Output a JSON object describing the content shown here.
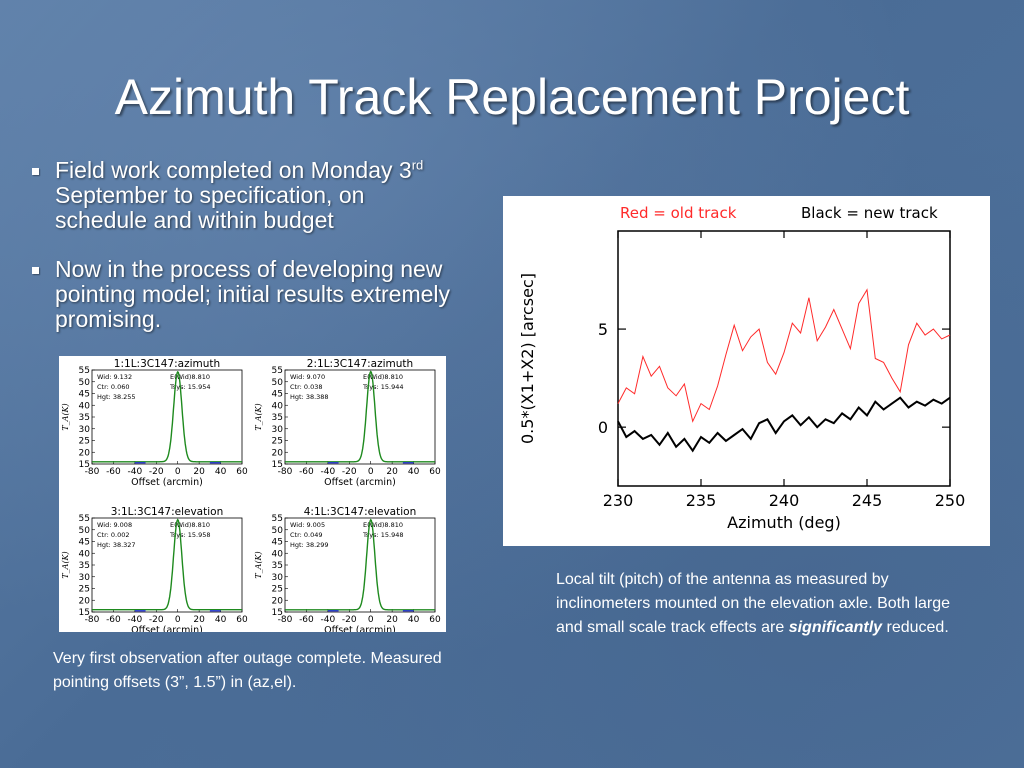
{
  "slide": {
    "title": "Azimuth Track Replacement Project",
    "bullets": [
      {
        "text_before": "Field work completed on Monday 3",
        "sup": "rd",
        "text_after": " September to specification, on schedule and within budget"
      },
      {
        "text": "Now in the process of developing new pointing model; initial results extremely promising."
      }
    ],
    "caption_left": "Very first observation after outage complete. Measured pointing offsets (3”, 1.5”) in (az,el).",
    "caption_right_before": "Local tilt (pitch) of the antenna as measured by inclinometers mounted on the elevation axle. Both large and small scale track effects are ",
    "caption_right_emph": "significantly",
    "caption_right_after": " reduced.",
    "colors": {
      "old_track": "#ff2a2a",
      "new_track": "#000000",
      "gaussian": "#1e8a1e",
      "baseline": "#2a2aff"
    }
  },
  "chart_data": [
    {
      "type": "line",
      "title": "1:1L:3C147:azimuth",
      "xlabel": "Offset (arcmin)",
      "ylabel": "T_A(K)",
      "xlim": [
        -80,
        60
      ],
      "ylim": [
        15,
        55
      ],
      "xticks": [
        -80,
        -60,
        -40,
        -20,
        0,
        20,
        40,
        60
      ],
      "yticks": [
        15,
        20,
        25,
        30,
        35,
        40,
        45,
        50,
        55
      ],
      "stats": [
        "Wid: 9.132",
        "Ctr: 0.060",
        "Hgt: 38.255",
        "E(Wid)8.810",
        "Tsys: 15.954"
      ],
      "fit": {
        "width": 9.132,
        "center": 0.06,
        "height": 38.255,
        "tsys": 15.954
      }
    },
    {
      "type": "line",
      "title": "2:1L:3C147:azimuth",
      "xlabel": "Offset (arcmin)",
      "ylabel": "T_A(K)",
      "xlim": [
        -80,
        60
      ],
      "ylim": [
        15,
        55
      ],
      "xticks": [
        -80,
        -60,
        -40,
        -20,
        0,
        20,
        40,
        60
      ],
      "yticks": [
        15,
        20,
        25,
        30,
        35,
        40,
        45,
        50,
        55
      ],
      "stats": [
        "Wid: 9.070",
        "Ctr: 0.038",
        "Hgt: 38.388",
        "E(Wid)8.810",
        "Tsys: 15.944"
      ],
      "fit": {
        "width": 9.07,
        "center": 0.038,
        "height": 38.388,
        "tsys": 15.944
      }
    },
    {
      "type": "line",
      "title": "3:1L:3C147:elevation",
      "xlabel": "Offset (arcmin)",
      "ylabel": "T_A(K)",
      "xlim": [
        -80,
        60
      ],
      "ylim": [
        15,
        55
      ],
      "xticks": [
        -80,
        -60,
        -40,
        -20,
        0,
        20,
        40,
        60
      ],
      "yticks": [
        15,
        20,
        25,
        30,
        35,
        40,
        45,
        50,
        55
      ],
      "stats": [
        "Wid: 9.008",
        "Ctr: 0.002",
        "Hgt: 38.327",
        "E(Wid)8.810",
        "Tsys: 15.958"
      ],
      "fit": {
        "width": 9.008,
        "center": 0.002,
        "height": 38.327,
        "tsys": 15.958
      }
    },
    {
      "type": "line",
      "title": "4:1L:3C147:elevation",
      "xlabel": "Offset (arcmin)",
      "ylabel": "T_A(K)",
      "xlim": [
        -80,
        60
      ],
      "ylim": [
        15,
        55
      ],
      "xticks": [
        -80,
        -60,
        -40,
        -20,
        0,
        20,
        40,
        60
      ],
      "yticks": [
        15,
        20,
        25,
        30,
        35,
        40,
        45,
        50,
        55
      ],
      "stats": [
        "Wid: 9.005",
        "Ctr: 0.049",
        "Hgt: 38.299",
        "E(Wid)8.810",
        "Tsys: 15.948"
      ],
      "fit": {
        "width": 9.005,
        "center": 0.049,
        "height": 38.299,
        "tsys": 15.948
      }
    },
    {
      "type": "line",
      "legend": [
        "Red = old track",
        "Black = new track"
      ],
      "xlabel": "Azimuth (deg)",
      "ylabel": "0.5*(X1+X2) [arcsec]",
      "xlim": [
        230,
        250
      ],
      "ylim": [
        -3,
        10
      ],
      "xticks": [
        230,
        235,
        240,
        245,
        250
      ],
      "yticks": [
        0,
        5
      ],
      "series": [
        {
          "name": "Red = old track",
          "x": [
            230,
            230.5,
            231,
            231.5,
            232,
            232.5,
            233,
            233.5,
            234,
            234.5,
            235,
            235.5,
            236,
            236.5,
            237,
            237.5,
            238,
            238.5,
            239,
            239.5,
            240,
            240.5,
            241,
            241.5,
            242,
            242.5,
            243,
            243.5,
            244,
            244.5,
            245,
            245.5,
            246,
            246.5,
            247,
            247.5,
            248,
            248.5,
            249,
            249.5,
            250
          ],
          "y": [
            1.2,
            2.0,
            1.7,
            3.6,
            2.6,
            3.1,
            2.0,
            1.6,
            2.2,
            0.3,
            1.2,
            0.9,
            2.1,
            3.7,
            5.2,
            3.9,
            4.6,
            5.0,
            3.3,
            2.7,
            3.8,
            5.3,
            4.8,
            6.6,
            4.4,
            5.1,
            6.0,
            5.0,
            4.0,
            6.3,
            7.0,
            3.5,
            3.3,
            2.5,
            1.8,
            4.2,
            5.3,
            4.7,
            5.0,
            4.5,
            4.7
          ]
        },
        {
          "name": "Black = new track",
          "x": [
            230,
            230.5,
            231,
            231.5,
            232,
            232.5,
            233,
            233.5,
            234,
            234.5,
            235,
            235.5,
            236,
            236.5,
            237,
            237.5,
            238,
            238.5,
            239,
            239.5,
            240,
            240.5,
            241,
            241.5,
            242,
            242.5,
            243,
            243.5,
            244,
            244.5,
            245,
            245.5,
            246,
            246.5,
            247,
            247.5,
            248,
            248.5,
            249,
            249.5,
            250
          ],
          "y": [
            0.3,
            -0.5,
            -0.2,
            -0.6,
            -0.4,
            -0.9,
            -0.3,
            -1.0,
            -0.6,
            -1.2,
            -0.5,
            -0.8,
            -0.3,
            -0.7,
            -0.4,
            -0.1,
            -0.6,
            0.2,
            0.4,
            -0.3,
            0.3,
            0.6,
            0.1,
            0.5,
            0.0,
            0.4,
            0.2,
            0.7,
            0.4,
            1.0,
            0.6,
            1.3,
            0.9,
            1.2,
            1.5,
            1.0,
            1.3,
            1.1,
            1.4,
            1.2,
            1.5
          ]
        }
      ]
    }
  ]
}
